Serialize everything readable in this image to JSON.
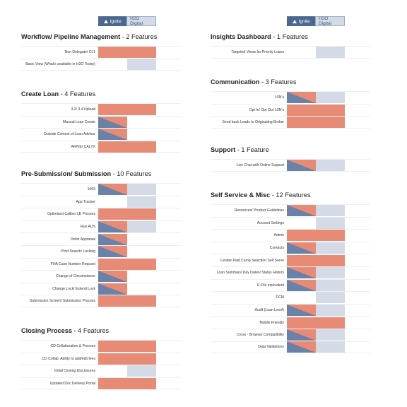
{
  "legend": {
    "ignite": "Ignite",
    "h2o": "H2O Digital"
  },
  "left_sections": [
    {
      "title": "Workflow/ Pipeline Management",
      "count": " - 2 Features",
      "rows": [
        {
          "label": "Non Delegate/ CL1",
          "cells": [
            "wide"
          ]
        },
        {
          "label": "Basic View (What's available in H2O Today)",
          "cells": [
            "blank",
            "grey"
          ]
        }
      ]
    },
    {
      "title": "Create Loan",
      "count": " - 4 Features",
      "rows": [
        {
          "label": "3.2/ 3.4 Upload",
          "cells": [
            "wide"
          ]
        },
        {
          "label": "Manual Loan Create",
          "cells": [
            "split",
            "blank"
          ]
        },
        {
          "label": "Outside Context of Loan Advisor",
          "cells": [
            "split",
            "blank"
          ]
        },
        {
          "label": "ARIVE/ CALYX",
          "cells": [
            "wide"
          ]
        }
      ]
    },
    {
      "title": "Pre-Submission/ Submission",
      "count": " - 10 Features",
      "rows": [
        {
          "label": "1003",
          "cells": [
            "split",
            "grey"
          ]
        },
        {
          "label": "App Tracker",
          "cells": [
            "blank",
            "grey"
          ]
        },
        {
          "label": "Optimized Caliber LE Process",
          "cells": [
            "wide"
          ]
        },
        {
          "label": "Run AUS",
          "cells": [
            "split",
            "grey"
          ]
        },
        {
          "label": "Order Appraisal",
          "cells": [
            "split",
            "blank"
          ]
        },
        {
          "label": "Prod Search/ Locking",
          "cells": [
            "split",
            "blank"
          ]
        },
        {
          "label": "FHA Case Number Request",
          "cells": [
            "wide"
          ]
        },
        {
          "label": "Change of Circumstance",
          "cells": [
            "split",
            "blank"
          ]
        },
        {
          "label": "Change Lock/ Extend Lock",
          "cells": [
            "split",
            "blank"
          ]
        },
        {
          "label": "Submission Screen/ Submission Process",
          "cells": [
            "wide"
          ]
        }
      ]
    },
    {
      "title": "Closing Process",
      "count": " - 4 Features",
      "rows": [
        {
          "label": "CD Collaboration & Process",
          "cells": [
            "wide"
          ]
        },
        {
          "label": "CD Collab: Ability to add/edit fees",
          "cells": [
            "wide"
          ]
        },
        {
          "label": "Initial Closing Disclosures",
          "cells": [
            "blank",
            "grey"
          ]
        },
        {
          "label": "Updated Doc Delivery Portal",
          "cells": [
            "wide"
          ]
        }
      ]
    }
  ],
  "right_sections": [
    {
      "title": "Insights Dashboard",
      "count": " - 1 Features",
      "rows": [
        {
          "label": "Targeted Views for Priority Loans",
          "cells": [
            "blank",
            "grey"
          ]
        }
      ]
    },
    {
      "title": "Communication",
      "count": " - 3 Features",
      "rows": [
        {
          "label": "LSN's",
          "cells": [
            "split",
            "grey"
          ]
        },
        {
          "label": "Opt In/ Opt Out LSN's",
          "cells": [
            "wide"
          ]
        },
        {
          "label": "Send back Leads to Originating Broker",
          "cells": [
            "wide"
          ]
        }
      ]
    },
    {
      "title": "Support",
      "count": " - 1 Feature",
      "rows": [
        {
          "label": "Live Chat with Online Support",
          "cells": [
            "split",
            "grey"
          ]
        }
      ]
    },
    {
      "title": "Self Service & Misc",
      "count": " - 12 Features",
      "rows": [
        {
          "label": "Resources/ Product Guidelines",
          "cells": [
            "split",
            "grey"
          ]
        },
        {
          "label": "Account Settings",
          "cells": [
            "blank",
            "grey"
          ]
        },
        {
          "label": "Admin",
          "cells": [
            "wide"
          ]
        },
        {
          "label": "Contacts",
          "cells": [
            "split",
            "grey"
          ]
        },
        {
          "label": "Lender Paid Comp Selection Self Serve",
          "cells": [
            "wide"
          ]
        },
        {
          "label": "Loan Summary/ Key Dates/ Status History",
          "cells": [
            "split",
            "grey"
          ]
        },
        {
          "label": "E-File equivalent",
          "cells": [
            "split",
            "grey"
          ]
        },
        {
          "label": "DCM",
          "cells": [
            "blank",
            "grey"
          ]
        },
        {
          "label": "Audit (Loan Level)",
          "cells": [
            "split",
            "grey"
          ]
        },
        {
          "label": "Mobile Friendly",
          "cells": [
            "wide"
          ]
        },
        {
          "label": "Cross - Browser Compatibility",
          "cells": [
            "split",
            "grey"
          ]
        },
        {
          "label": "Data Validations",
          "cells": [
            "split",
            "grey"
          ]
        }
      ]
    }
  ],
  "colors": {
    "ignite_blue": "#4a6890",
    "h2o_grey": "#d5dbe6",
    "salmon": "#e88b76",
    "split_blue": "#6a82a8"
  }
}
